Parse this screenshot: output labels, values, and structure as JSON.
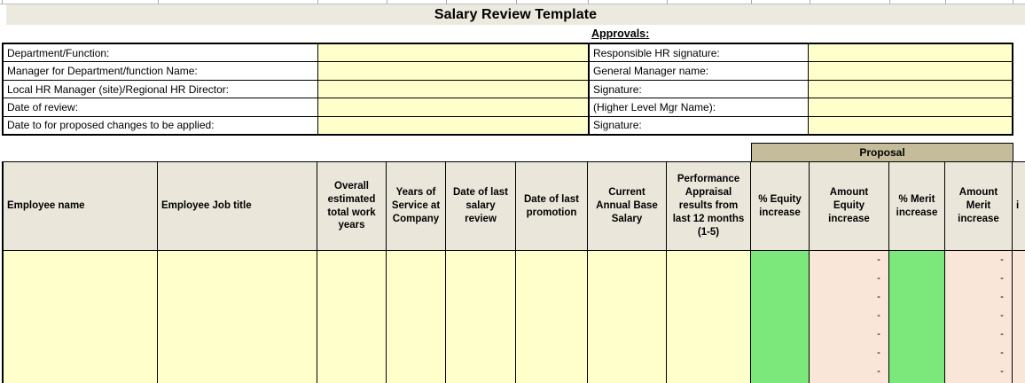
{
  "title": "Salary Review Template",
  "approvals": {
    "heading": "Approvals:",
    "left": [
      {
        "label": "Department/Function:",
        "value": ""
      },
      {
        "label": "Manager for Department/function Name:",
        "value": ""
      },
      {
        "label": "Local HR Manager (site)/Regional HR Director:",
        "value": ""
      },
      {
        "label": "Date of review:",
        "value": ""
      },
      {
        "label": "Date to for proposed changes to be applied:",
        "value": ""
      }
    ],
    "right": [
      {
        "label": "Responsible HR signature:",
        "value": ""
      },
      {
        "label": "General Manager name:",
        "value": ""
      },
      {
        "label": "Signature:",
        "value": ""
      },
      {
        "label": "(Higher Level Mgr Name):",
        "value": ""
      },
      {
        "label": "Signature:",
        "value": ""
      }
    ]
  },
  "proposal_header": "Proposal",
  "table": {
    "columns": [
      {
        "label": "Employee name",
        "type": "input"
      },
      {
        "label": "Employee Job title",
        "type": "input"
      },
      {
        "label": "Overall estimated total work years",
        "type": "input"
      },
      {
        "label": "Years of Service at Company",
        "type": "input"
      },
      {
        "label": "Date of last salary review",
        "type": "input"
      },
      {
        "label": "Date of last promotion",
        "type": "input"
      },
      {
        "label": "Current Annual Base Salary",
        "type": "input"
      },
      {
        "label": "Performance Appraisal results from last 12 months (1-5)",
        "type": "input"
      },
      {
        "label": "% Equity increase",
        "type": "percent"
      },
      {
        "label": "Amount Equity increase",
        "type": "amount"
      },
      {
        "label": "% Merit increase",
        "type": "percent"
      },
      {
        "label": "Amount Merit increase",
        "type": "amount"
      },
      {
        "label": "i",
        "type": "amount",
        "partial": true
      }
    ],
    "visible_row_count": 8,
    "empty_amount_placeholder": "-",
    "cell_values": []
  },
  "colors": {
    "input_yellow": "#FFFFCB",
    "percent_green": "#7CE87C",
    "amount_pink": "#FAE6D9",
    "header_beige": "#EAE6DA",
    "proposal_tan": "#C5BC9B",
    "title_band": "#ECE9DF",
    "grid_border": "#000000"
  }
}
